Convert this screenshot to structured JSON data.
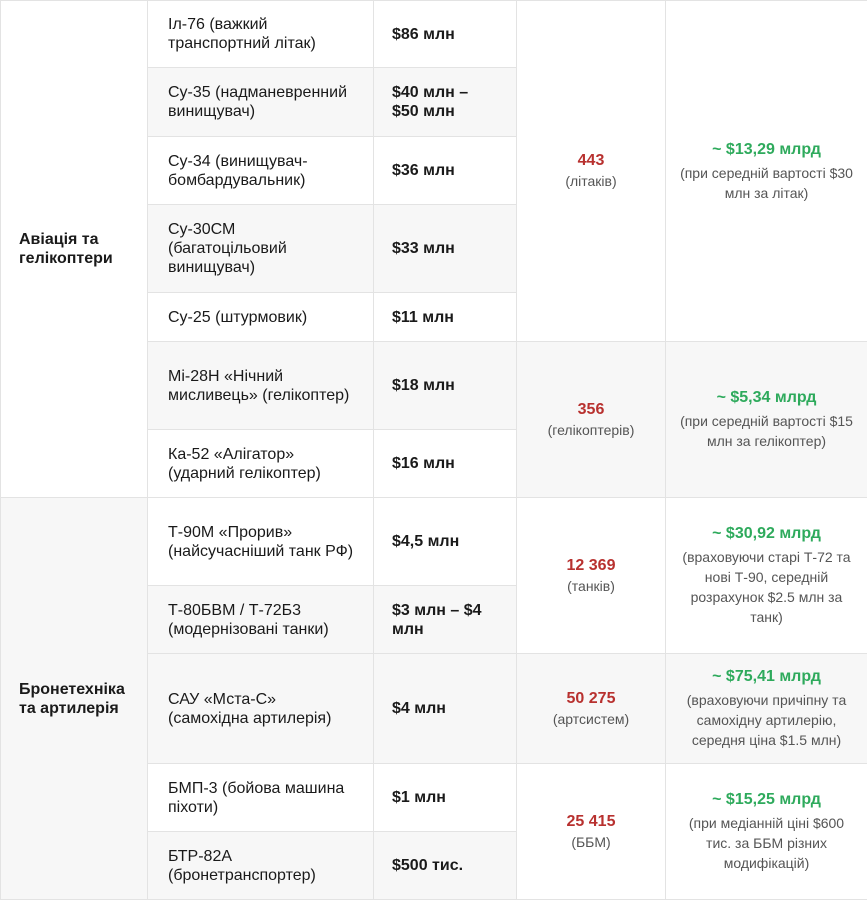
{
  "table": {
    "sections": [
      {
        "category": "Авіація та гелікоптери",
        "subgroups": [
          {
            "items": [
              {
                "name": "Іл-76 (важкий транспортний літак)",
                "price": "$86 млн"
              },
              {
                "name": "Су-35 (надманевренний винищувач)",
                "price": "$40 млн – $50 млн"
              },
              {
                "name": "Су-34 (винищувач-бомбардувальник)",
                "price": "$36 млн"
              },
              {
                "name": "Су-30СМ (багатоцільовий винищувач)",
                "price": "$33 млн"
              },
              {
                "name": "Су-25 (штурмовик)",
                "price": "$11 млн"
              }
            ],
            "count": "443",
            "unit": "(літаків)",
            "estimate": "~ $13,29 млрд",
            "note": "(при середній вартості $30 млн за літак)"
          },
          {
            "items": [
              {
                "name": "Мі-28Н «Нічний мисливець» (гелікоптер)",
                "price": "$18 млн"
              },
              {
                "name": "Ка-52 «Алігатор» (ударний гелікоптер)",
                "price": "$16 млн"
              }
            ],
            "count": "356",
            "unit": "(гелікоптерів)",
            "estimate": "~ $5,34 млрд",
            "note": "(при середній вартості $15 млн за гелікоптер)"
          }
        ]
      },
      {
        "category": "Бронетехніка та артилерія",
        "subgroups": [
          {
            "items": [
              {
                "name": "Т-90М «Прорив» (найсучасніший танк РФ)",
                "price": "$4,5 млн"
              },
              {
                "name": "Т-80БВМ / Т-72Б3 (модернізовані танки)",
                "price": "$3 млн – $4 млн"
              }
            ],
            "count": "12 369",
            "unit": "(танків)",
            "estimate": "~ $30,92 млрд",
            "note": "(враховуючи старі Т-72 та нові Т-90, середній розрахунок $2.5 млн за танк)"
          },
          {
            "items": [
              {
                "name": "САУ «Мста-С» (самохідна артилерія)",
                "price": "$4 млн"
              }
            ],
            "count": "50 275",
            "unit": "(артсистем)",
            "estimate": "~ $75,41 млрд",
            "note": "(враховуючи причіпну та самохідну артилерію, середня ціна $1.5 млн)"
          },
          {
            "items": [
              {
                "name": "БМП-3 (бойова машина піхоти)",
                "price": "$1 млн"
              },
              {
                "name": "БТР-82А (бронетранспортер)",
                "price": "$500 тис."
              }
            ],
            "count": "25 415",
            "unit": "(ББМ)",
            "estimate": "~ $15,25 млрд",
            "note": "(при медіанній ціні $600 тис. за ББМ різних модифікацій)"
          }
        ]
      }
    ]
  }
}
